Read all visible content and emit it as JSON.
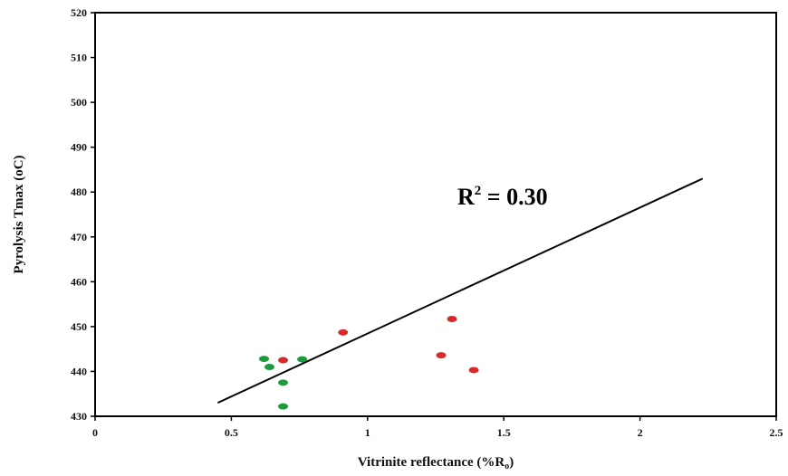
{
  "chart_data": {
    "type": "scatter",
    "xlabel": "Vitrinite reflectance (%R",
    "xlabel_sub": "o",
    "xlabel_end": ")",
    "ylabel": "Pyrolysis Tmax (oC)",
    "xlim": [
      0,
      2.5
    ],
    "ylim": [
      430,
      520
    ],
    "x_ticks": [
      "0",
      "0.5",
      "1",
      "1.5",
      "2",
      "2.5"
    ],
    "y_ticks": [
      "430",
      "440",
      "450",
      "460",
      "470",
      "480",
      "490",
      "500",
      "510",
      "520"
    ],
    "grid": false,
    "annotation": {
      "prefix": "R",
      "sup": "2",
      "suffix": " = 0.30"
    },
    "colors": {
      "group_a": "#d62b2b",
      "group_b": "#1e9a3c",
      "line": "#000000"
    },
    "series": [
      {
        "color_key": "group_a",
        "points": [
          [
            0.69,
            442.5
          ],
          [
            0.91,
            448.7
          ],
          [
            1.27,
            443.6
          ],
          [
            1.31,
            451.7
          ],
          [
            1.39,
            440.3
          ]
        ]
      },
      {
        "color_key": "group_b",
        "points": [
          [
            0.62,
            442.8
          ],
          [
            0.64,
            441.0
          ],
          [
            0.69,
            437.5
          ],
          [
            0.69,
            432.2
          ],
          [
            0.76,
            442.7
          ]
        ]
      }
    ],
    "trendline": {
      "x": [
        0.45,
        2.23
      ],
      "y": [
        433.0,
        483.0
      ]
    }
  }
}
